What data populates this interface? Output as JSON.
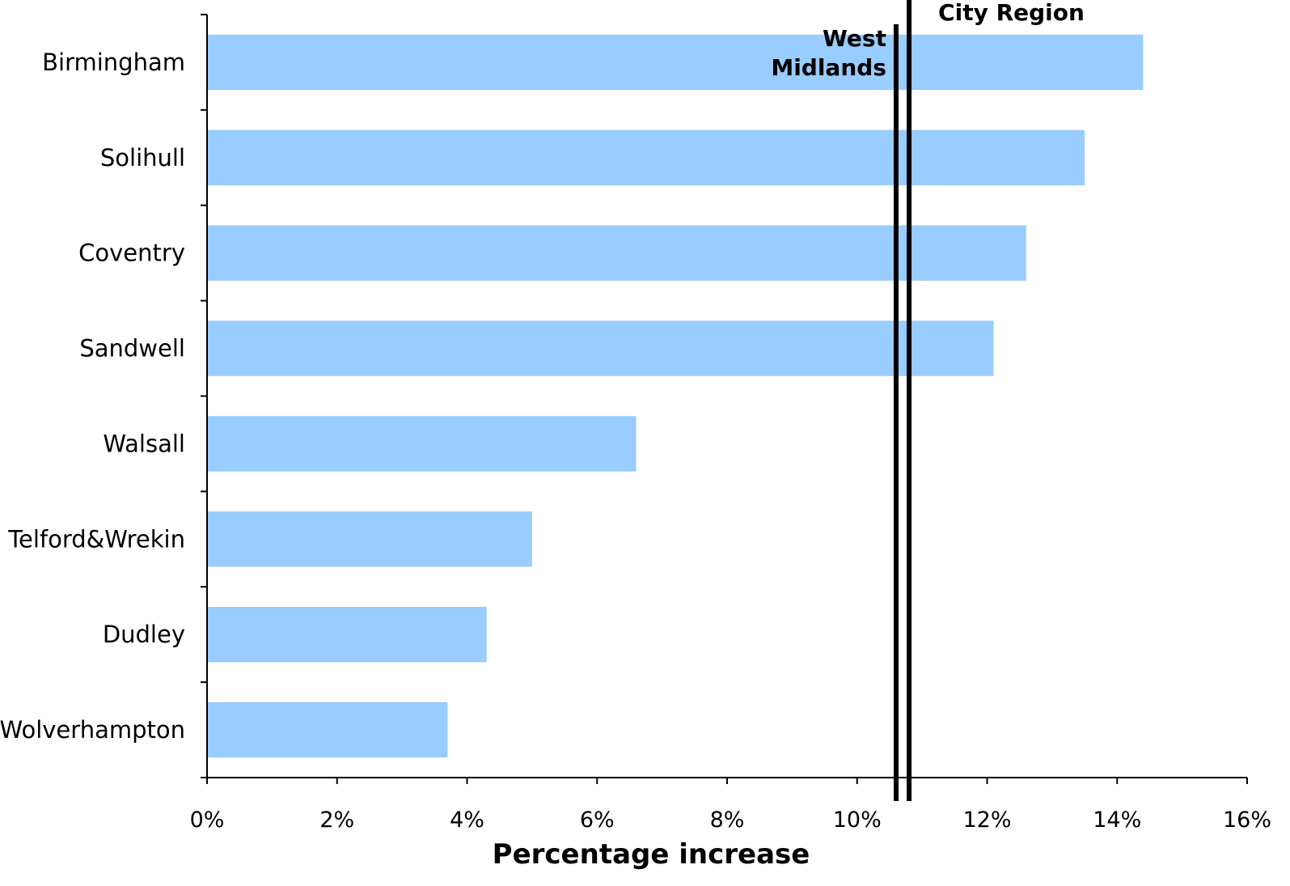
{
  "chart_data": {
    "type": "bar",
    "orientation": "horizontal",
    "categories": [
      "Birmingham",
      "Solihull",
      "Coventry",
      "Sandwell",
      "Walsall",
      "Telford&Wrekin",
      "Dudley",
      "Wolverhampton"
    ],
    "values": [
      14.4,
      13.5,
      12.6,
      12.1,
      6.6,
      5.0,
      4.3,
      3.7
    ],
    "xlabel": "Percentage increase",
    "ylabel": "",
    "xlim": [
      0,
      16
    ],
    "x_ticks": [
      "0%",
      "2%",
      "4%",
      "6%",
      "8%",
      "10%",
      "12%",
      "14%",
      "16%"
    ],
    "bar_color": "#99ccff",
    "grid": false,
    "reference_lines": [
      {
        "label_lines": [
          "West",
          "Midlands"
        ],
        "value": 10.6
      },
      {
        "label_lines": [
          "City Region"
        ],
        "value": 10.8
      }
    ]
  }
}
